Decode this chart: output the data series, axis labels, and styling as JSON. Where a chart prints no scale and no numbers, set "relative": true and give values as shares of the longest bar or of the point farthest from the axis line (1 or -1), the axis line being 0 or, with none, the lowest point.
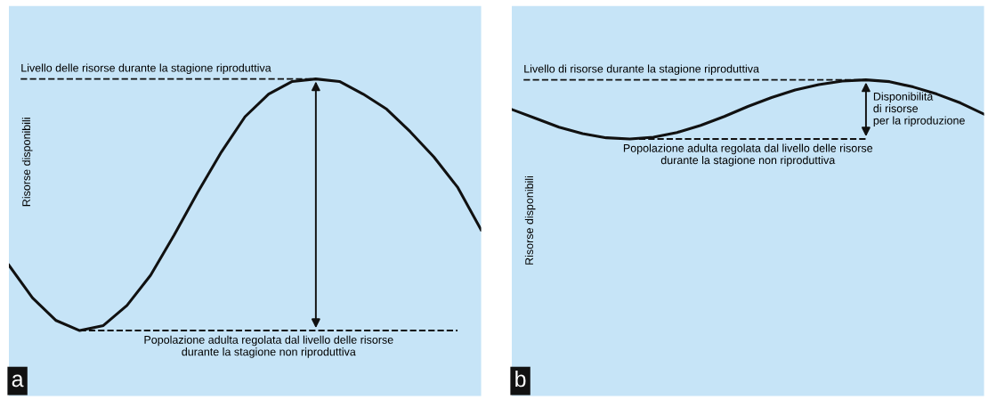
{
  "chart_data": [
    {
      "type": "line",
      "relative": true,
      "ylabel": "Risorse disponibili",
      "categories": [
        null,
        null,
        null,
        null,
        null,
        null,
        null,
        null,
        null,
        null,
        null,
        null,
        null,
        null,
        null,
        null,
        null,
        null,
        null,
        null,
        null
      ],
      "series": [
        {
          "color": "#111111",
          "values": [
            0.26,
            0.13,
            0.04,
            0,
            0.02,
            0.1,
            0.22,
            0.38,
            0.55,
            0.71,
            0.85,
            0.94,
            0.99,
            1,
            0.99,
            0.94,
            0.88,
            0.79,
            0.69,
            0.57,
            0.4
          ]
        }
      ],
      "ref_lines": [
        {
          "axis": "y",
          "value": 1,
          "label": "Livello delle risorse durante la stagione riproduttiva",
          "line_style": "dashed"
        },
        {
          "axis": "y",
          "value": 0,
          "label": "Popolazione adulta regolata dal livello delle risorse\ndurante la stagione non riproduttiva",
          "line_style": "dashed"
        }
      ],
      "annotations": [
        "a"
      ],
      "line_style": "solid"
    },
    {
      "type": "line",
      "relative": true,
      "ylabel": "Risorse disponibili",
      "categories": [
        null,
        null,
        null,
        null,
        null,
        null,
        null,
        null,
        null,
        null,
        null,
        null,
        null,
        null,
        null,
        null,
        null,
        null,
        null,
        null,
        null
      ],
      "series": [
        {
          "color": "#111111",
          "values": [
            0.5,
            0.35,
            0.2,
            0.09,
            0.02,
            0,
            0.03,
            0.11,
            0.23,
            0.38,
            0.55,
            0.7,
            0.83,
            0.92,
            0.98,
            1,
            0.97,
            0.88,
            0.76,
            0.61,
            0.42
          ]
        }
      ],
      "ref_lines": [
        {
          "axis": "y",
          "value": 1,
          "label": "Livello di risorse durante la stagione riproduttiva",
          "line_style": "dashed"
        },
        {
          "axis": "y",
          "value": 0,
          "label": "Popolazione adulta regolata dal livello delle risorse\ndurante la stagione non riproduttiva",
          "line_style": "dashed"
        }
      ],
      "annotations": [
        "Disponibilità\ndi risorse\nper la riproduzione",
        "b"
      ],
      "line_style": "solid"
    }
  ]
}
